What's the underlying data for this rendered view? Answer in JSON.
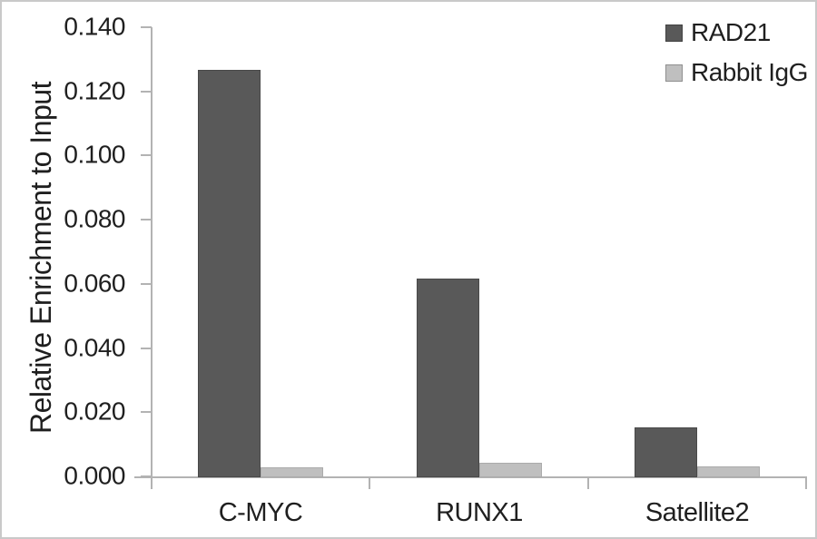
{
  "chart_data": {
    "type": "bar",
    "title": "",
    "ylabel": "Relative Enrichment to Input",
    "xlabel": "",
    "categories": [
      "C-MYC",
      "RUNX1",
      "Satellite2"
    ],
    "series": [
      {
        "name": "RAD21",
        "color": "#595959",
        "values": [
          0.127,
          0.062,
          0.0155
        ]
      },
      {
        "name": "Rabbit IgG",
        "color": "#bfbfbf",
        "values": [
          0.003,
          0.0045,
          0.0035
        ]
      }
    ],
    "ylim": [
      0,
      0.14
    ],
    "ytick_step": 0.02,
    "ytick_labels": [
      "0.000",
      "0.020",
      "0.040",
      "0.060",
      "0.080",
      "0.100",
      "0.120",
      "0.140"
    ],
    "grid": "off",
    "legend_position": "top-right",
    "colors": {
      "axis": "#b3b3b3",
      "text": "#1f1f1f",
      "frame_border": "#c9c9c9",
      "background": "#ffffff"
    }
  }
}
